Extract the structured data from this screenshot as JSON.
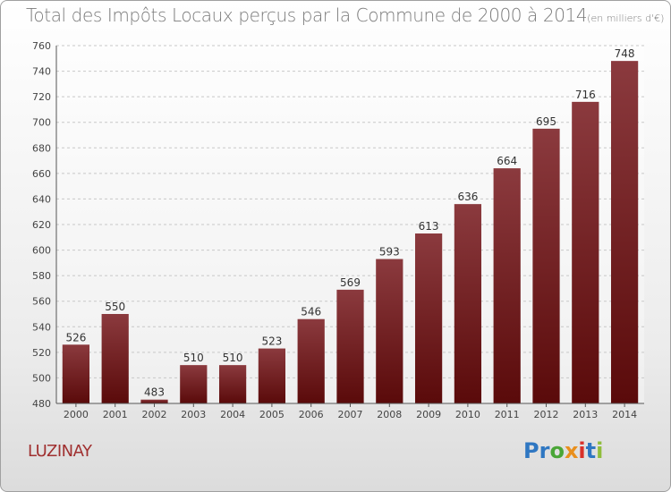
{
  "chart_data": {
    "type": "bar",
    "title": "Total des Impôts Locaux perçus par la Commune de 2000 à 2014",
    "unit_note": "(en milliers d'€)",
    "categories": [
      "2000",
      "2001",
      "2002",
      "2003",
      "2004",
      "2005",
      "2006",
      "2007",
      "2008",
      "2009",
      "2010",
      "2011",
      "2012",
      "2013",
      "2014"
    ],
    "values": [
      526,
      550,
      483,
      510,
      510,
      523,
      546,
      569,
      593,
      613,
      636,
      664,
      695,
      716,
      748
    ],
    "ylim": [
      480,
      760
    ],
    "yticks": [
      480,
      500,
      520,
      540,
      560,
      580,
      600,
      620,
      640,
      660,
      680,
      700,
      720,
      740,
      760
    ],
    "grid": true,
    "bar_color_top": "#8b3a3e",
    "bar_color_bottom": "#5a0a0a"
  },
  "commune": "LUZINAY",
  "logo": [
    "Pr",
    "o",
    "x",
    "i",
    "t",
    "i"
  ]
}
